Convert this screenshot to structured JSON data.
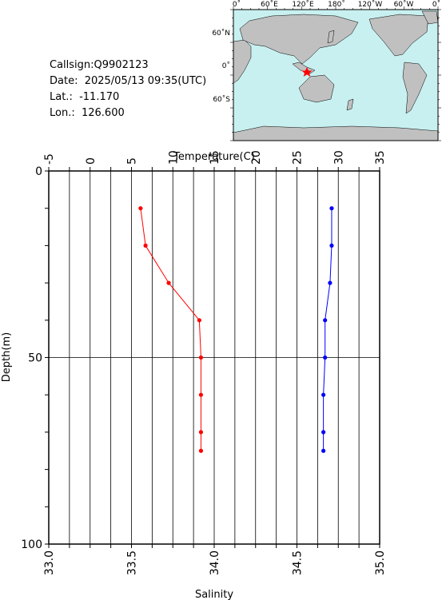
{
  "info": {
    "callsign": "Callsign:Q9902123",
    "date": "Date:  2025/05/13 09:35(UTC)",
    "lat": "Lat.:  -11.170",
    "lon": "Lon.:  126.600"
  },
  "map": {
    "lon_ticks": [
      "0˚",
      "60˚E",
      "120˚E",
      "180˚",
      "120˚W",
      "60˚W",
      "0˚"
    ],
    "lat_ticks": [
      "60˚N",
      "0˚",
      "60˚S"
    ],
    "station_marker_color": "#ff0000",
    "ocean_color": "#c8f0f0",
    "land_color": "#c0c0c0"
  },
  "chart_data": {
    "type": "line",
    "ylabel": "Depth(m)",
    "ylim": [
      0,
      100
    ],
    "y_ticks": [
      "0",
      "50",
      "100"
    ],
    "temperature_axis": {
      "label": "Temperature(C)",
      "range": [
        -5,
        35
      ],
      "ticks": [
        "-5",
        "0",
        "5",
        "10",
        "15",
        "20",
        "25",
        "30",
        "35"
      ],
      "position": "top"
    },
    "salinity_axis": {
      "label": "Salinity",
      "range": [
        33.0,
        35.0
      ],
      "ticks": [
        "33.0",
        "33.5",
        "34.0",
        "34.5",
        "35.0"
      ],
      "position": "bottom"
    },
    "grid": true,
    "series": [
      {
        "axis": "temperature",
        "color": "#ff0000",
        "depth": [
          10,
          20,
          30,
          40,
          50,
          60,
          70,
          75
        ],
        "values": [
          6.1,
          6.7,
          9.5,
          13.2,
          13.4,
          13.4,
          13.4,
          13.4
        ]
      },
      {
        "axis": "salinity",
        "color": "#0000ff",
        "depth": [
          10,
          20,
          30,
          40,
          50,
          60,
          70,
          75
        ],
        "values": [
          34.71,
          34.71,
          34.7,
          34.67,
          34.67,
          34.66,
          34.66,
          34.66
        ]
      }
    ]
  }
}
